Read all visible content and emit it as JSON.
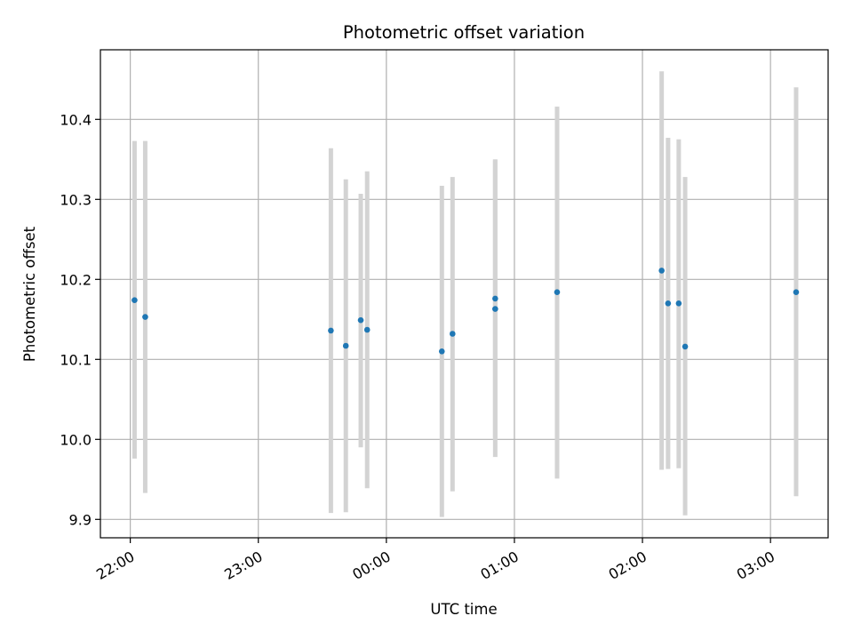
{
  "chart_data": {
    "type": "scatter",
    "title": "Photometric offset variation",
    "xlabel": "UTC time",
    "ylabel": "Photometric offset",
    "x_ticks": [
      "22:00",
      "23:00",
      "00:00",
      "01:00",
      "02:00",
      "03:00"
    ],
    "y_ticks": [
      "9.9",
      "10.0",
      "10.1",
      "10.2",
      "10.3",
      "10.4"
    ],
    "xlim": [
      "21:46",
      "03:27"
    ],
    "ylim": [
      9.877,
      10.487
    ],
    "grid": true,
    "series": [
      {
        "color": "#1f77b4",
        "error_color": "#d3d3d3",
        "points": [
          {
            "x": "22:02",
            "y": 10.174,
            "ymin": 9.976,
            "ymax": 10.373
          },
          {
            "x": "22:07",
            "y": 10.153,
            "ymin": 9.933,
            "ymax": 10.373
          },
          {
            "x": "23:34",
            "y": 10.136,
            "ymin": 9.908,
            "ymax": 10.364
          },
          {
            "x": "23:41",
            "y": 10.117,
            "ymin": 9.909,
            "ymax": 10.325
          },
          {
            "x": "23:48",
            "y": 10.149,
            "ymin": 9.99,
            "ymax": 10.307
          },
          {
            "x": "23:51",
            "y": 10.137,
            "ymin": 9.939,
            "ymax": 10.335
          },
          {
            "x": "00:26",
            "y": 10.11,
            "ymin": 9.903,
            "ymax": 10.317
          },
          {
            "x": "00:31",
            "y": 10.132,
            "ymin": 9.935,
            "ymax": 10.328
          },
          {
            "x": "00:51",
            "y": 10.163,
            "ymin": 9.978,
            "ymax": 10.349
          },
          {
            "x": "00:51",
            "y": 10.176,
            "ymin": 10.002,
            "ymax": 10.35
          },
          {
            "x": "01:20",
            "y": 10.184,
            "ymin": 9.951,
            "ymax": 10.416
          },
          {
            "x": "02:09",
            "y": 10.211,
            "ymin": 9.962,
            "ymax": 10.46
          },
          {
            "x": "02:12",
            "y": 10.17,
            "ymin": 9.963,
            "ymax": 10.377
          },
          {
            "x": "02:17",
            "y": 10.17,
            "ymin": 9.964,
            "ymax": 10.375
          },
          {
            "x": "02:20",
            "y": 10.116,
            "ymin": 9.905,
            "ymax": 10.328
          },
          {
            "x": "03:12",
            "y": 10.184,
            "ymin": 9.929,
            "ymax": 10.44
          }
        ]
      }
    ]
  }
}
